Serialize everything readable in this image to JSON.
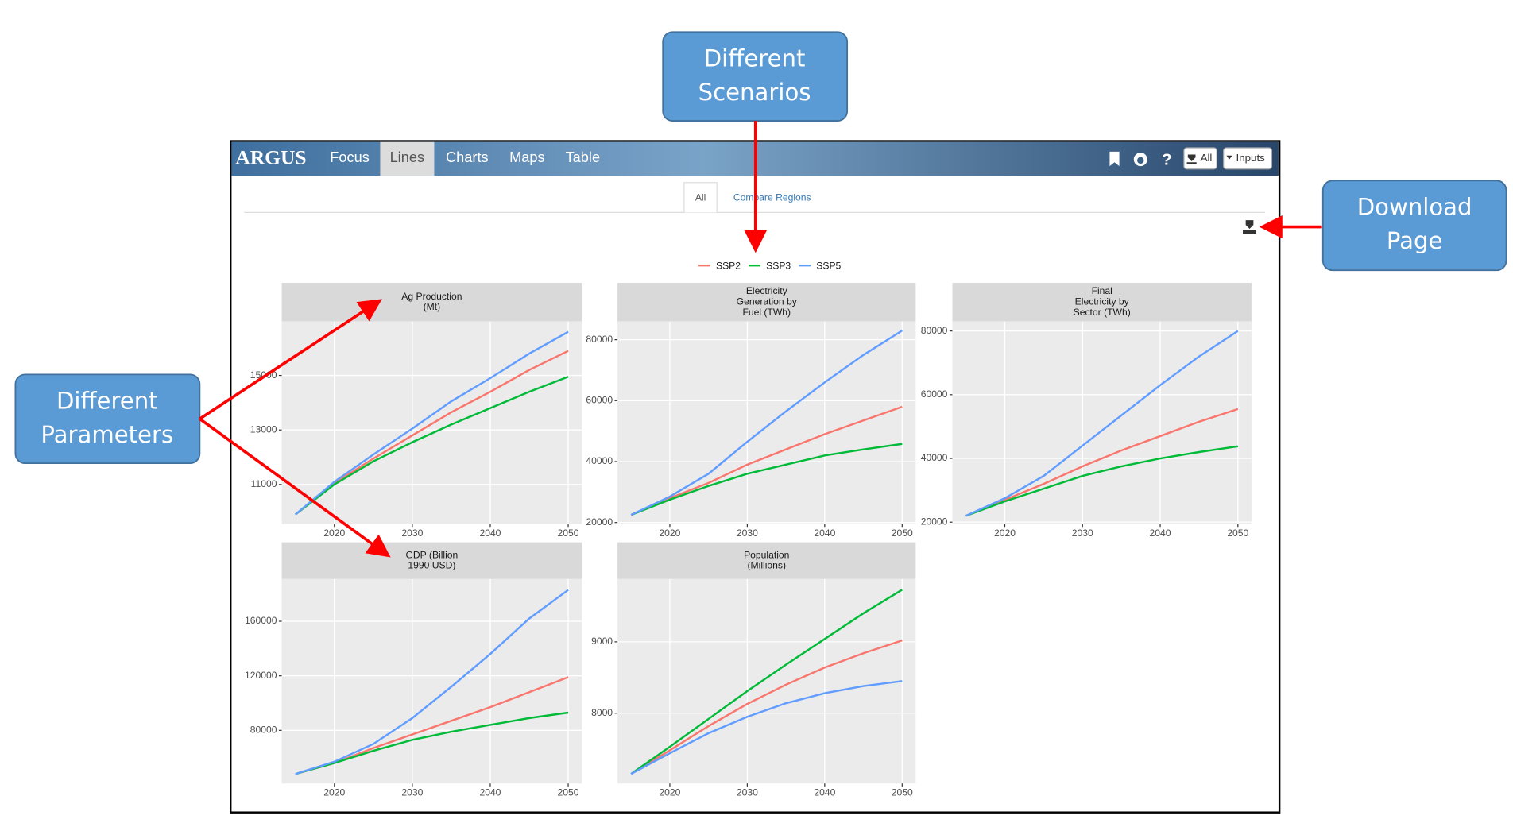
{
  "callouts": [
    {
      "lines": [
        "Different",
        "Scenarios"
      ]
    },
    {
      "lines": [
        "Download",
        "Page"
      ]
    },
    {
      "lines": [
        "Different",
        "Parameters"
      ]
    }
  ],
  "nav": {
    "brand": "ARGUS",
    "items": [
      "Focus",
      "Lines",
      "Charts",
      "Maps",
      "Table"
    ],
    "buttons": [
      "All",
      "Inputs"
    ]
  },
  "tabs": [
    "All",
    "Compare Regions"
  ],
  "legend": [
    {
      "name": "SSP2",
      "color": "#f8766d"
    },
    {
      "name": "SSP3",
      "color": "#00ba38"
    },
    {
      "name": "SSP5",
      "color": "#619cff"
    }
  ],
  "chart_data": [
    {
      "type": "line",
      "title": [
        "Ag Production",
        "(Mt)"
      ],
      "x": [
        2015,
        2020,
        2025,
        2030,
        2035,
        2040,
        2045,
        2050
      ],
      "series": [
        {
          "values": [
            9900,
            11050,
            11950,
            12800,
            13650,
            14400,
            15200,
            15900
          ]
        },
        {
          "values": [
            9900,
            11000,
            11850,
            12550,
            13200,
            13800,
            14400,
            14950
          ]
        },
        {
          "values": [
            9900,
            11100,
            12100,
            13050,
            14050,
            14900,
            15800,
            16600
          ]
        }
      ],
      "xlim": [
        2013.25,
        2051.75
      ],
      "xticks": [
        2020,
        2030,
        2040,
        2050
      ],
      "ylim": [
        9550,
        16980
      ],
      "yticks": [
        11000,
        13000,
        15000
      ],
      "grid": true
    },
    {
      "type": "line",
      "title": [
        "Electricity",
        "Generation by",
        "Fuel (TWh)"
      ],
      "x": [
        2015,
        2020,
        2025,
        2030,
        2035,
        2040,
        2045,
        2050
      ],
      "series": [
        {
          "values": [
            22500,
            28000,
            33000,
            39000,
            44000,
            49000,
            53500,
            58000
          ]
        },
        {
          "values": [
            22500,
            27500,
            32000,
            36000,
            39000,
            42000,
            44000,
            45800
          ]
        },
        {
          "values": [
            22500,
            28500,
            36000,
            46500,
            56500,
            66000,
            75000,
            83000
          ]
        }
      ],
      "xlim": [
        2013.25,
        2051.75
      ],
      "xticks": [
        2020,
        2030,
        2040,
        2050
      ],
      "ylim": [
        19500,
        86000
      ],
      "yticks": [
        20000,
        40000,
        60000,
        80000
      ],
      "grid": true
    },
    {
      "type": "line",
      "title": [
        "Final",
        "Electricity by",
        "Sector (TWh)"
      ],
      "x": [
        2015,
        2020,
        2025,
        2030,
        2035,
        2040,
        2045,
        2050
      ],
      "series": [
        {
          "values": [
            22000,
            27000,
            32000,
            37500,
            42500,
            47000,
            51500,
            55500
          ]
        },
        {
          "values": [
            22000,
            26500,
            30500,
            34500,
            37500,
            40000,
            42000,
            43800
          ]
        },
        {
          "values": [
            22000,
            27500,
            34500,
            44000,
            53500,
            63000,
            72000,
            80000
          ]
        }
      ],
      "xlim": [
        2013.25,
        2051.75
      ],
      "xticks": [
        2020,
        2030,
        2040,
        2050
      ],
      "ylim": [
        19400,
        83000
      ],
      "yticks": [
        20000,
        40000,
        60000,
        80000
      ],
      "grid": true
    },
    {
      "type": "line",
      "title": [
        "GDP (Billion",
        "1990 USD)"
      ],
      "x": [
        2015,
        2020,
        2025,
        2030,
        2035,
        2040,
        2045,
        2050
      ],
      "series": [
        {
          "values": [
            48000,
            56000,
            67000,
            77000,
            87000,
            97000,
            108000,
            119000
          ]
        },
        {
          "values": [
            48000,
            56000,
            65000,
            73000,
            79000,
            84000,
            89000,
            93000
          ]
        },
        {
          "values": [
            48000,
            57000,
            70000,
            89000,
            112000,
            136000,
            162000,
            183000
          ]
        }
      ],
      "xlim": [
        2013.25,
        2051.75
      ],
      "xticks": [
        2020,
        2030,
        2040,
        2050
      ],
      "ylim": [
        41000,
        191000
      ],
      "yticks": [
        80000,
        120000,
        160000
      ],
      "grid": true
    },
    {
      "type": "line",
      "title": [
        "Population",
        "(Millions)"
      ],
      "x": [
        2015,
        2020,
        2025,
        2030,
        2035,
        2040,
        2045,
        2050
      ],
      "series": [
        {
          "values": [
            7150,
            7480,
            7820,
            8130,
            8400,
            8640,
            8840,
            9020
          ]
        },
        {
          "values": [
            7150,
            7530,
            7920,
            8310,
            8680,
            9040,
            9400,
            9730
          ]
        },
        {
          "values": [
            7150,
            7440,
            7720,
            7950,
            8140,
            8280,
            8380,
            8450
          ]
        }
      ],
      "xlim": [
        2013.25,
        2051.75
      ],
      "xticks": [
        2020,
        2030,
        2040,
        2050
      ],
      "ylim": [
        7015,
        9880
      ],
      "yticks": [
        8000,
        9000
      ],
      "grid": true
    }
  ]
}
